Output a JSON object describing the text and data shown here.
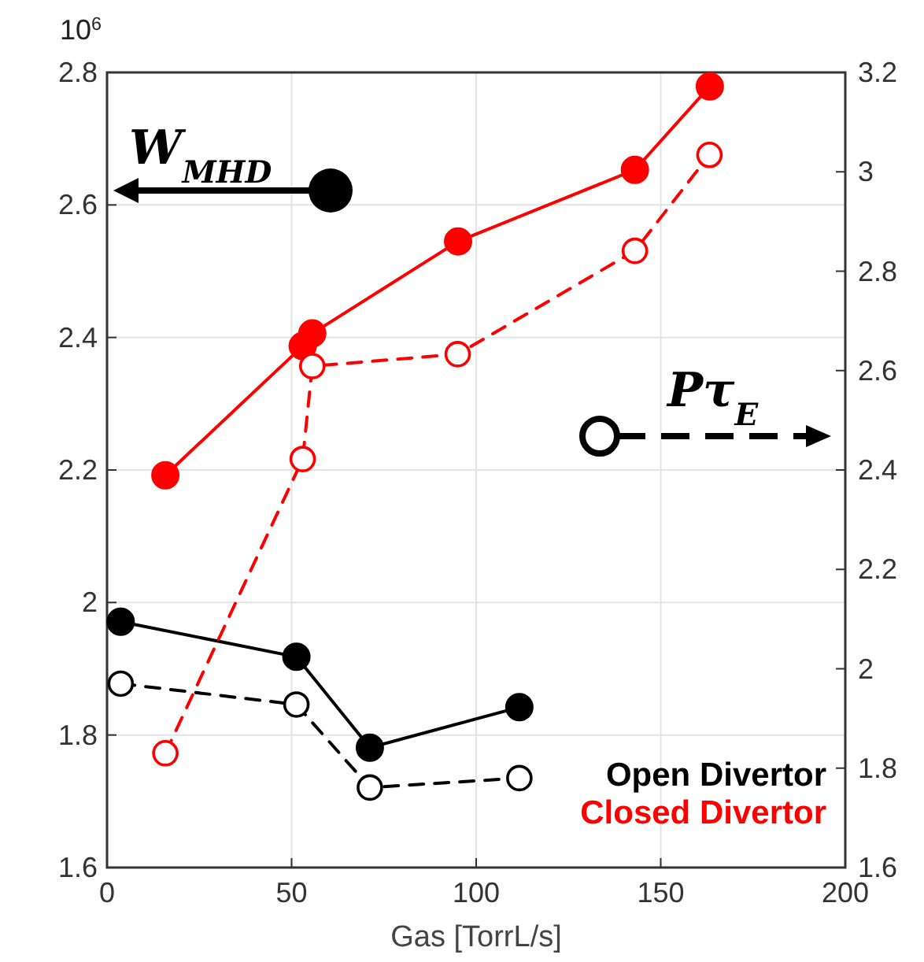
{
  "chart_data": {
    "type": "line",
    "xlabel": "Gas [TorrL/s]",
    "ylabel": "W$_{MHD}$",
    "y2label": "Pτ$_{E}$",
    "xlim": [
      0,
      200
    ],
    "xticks": [
      0,
      50,
      100,
      150,
      200
    ],
    "ylim": [
      1.6,
      2.8
    ],
    "yticks": [
      1.6,
      1.8,
      2,
      2.2,
      2.4,
      2.6,
      2.8
    ],
    "y2lim": [
      1.6,
      3.2
    ],
    "y2ticks": [
      1.6,
      1.8,
      2,
      2.2,
      2.4,
      2.6,
      2.8,
      3,
      3.2
    ],
    "grid": true,
    "legend": "bottom right",
    "marker": "circle",
    "annotations": [
      "10$^{6}$"
    ],
    "series": [
      {
        "name": "Open Divertor",
        "color": "#000000",
        "x": [
          3.7,
          51.3,
          71.2,
          111.7
        ],
        "values": [
          1.971,
          1.918,
          1.781,
          1.842
        ],
        "line_style": "solid"
      },
      {
        "name": "Closed Divertor",
        "color": "#ff0000",
        "x": [
          15.8,
          53,
          55.6,
          95.1,
          143,
          163.3
        ],
        "values": [
          2.192,
          2.387,
          2.406,
          2.545,
          2.653,
          2.779
        ],
        "line_style": "solid"
      },
      {
        "color": "#000000",
        "x": [
          3.7,
          51.3,
          71.2,
          111.7
        ],
        "values": [
          1.97,
          1.928,
          1.761,
          1.78
        ],
        "axis": "y2",
        "line_style": "dashed"
      },
      {
        "color": "#ff0000",
        "x": [
          15.8,
          53,
          55.6,
          95,
          143,
          163.2
        ],
        "values": [
          1.83,
          2.422,
          2.609,
          2.633,
          2.841,
          3.034
        ],
        "axis": "y2",
        "line_style": "dashed"
      }
    ]
  }
}
